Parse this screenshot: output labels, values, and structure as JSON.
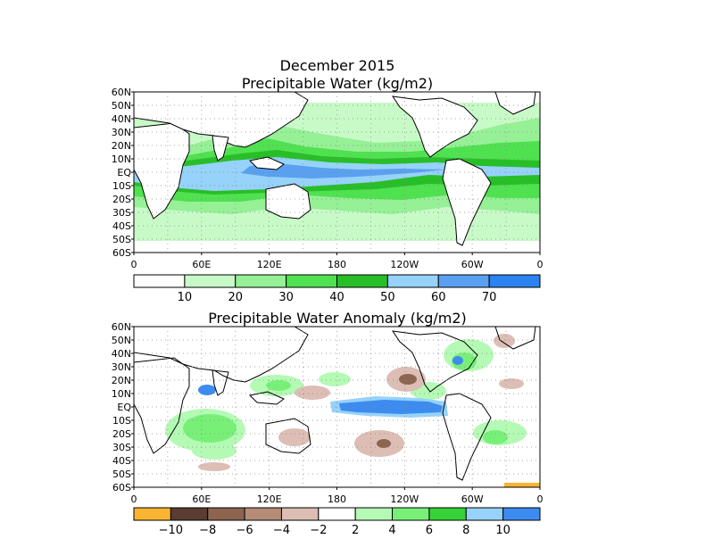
{
  "figure": {
    "title": "December 2015",
    "x_ticks": [
      "0",
      "60E",
      "120E",
      "180",
      "120W",
      "60W",
      "0"
    ],
    "y_ticks": [
      "60N",
      "50N",
      "40N",
      "30N",
      "20N",
      "10N",
      "EQ",
      "10S",
      "20S",
      "30S",
      "40S",
      "50S",
      "60S"
    ]
  },
  "panels": [
    {
      "title": "Precipitable Water (kg/m2)",
      "colorbar": {
        "labels": [
          "10",
          "20",
          "30",
          "40",
          "50",
          "60",
          "70"
        ],
        "colors": [
          "#ffffff",
          "#c8fac8",
          "#96f096",
          "#50e150",
          "#28be28",
          "#96d2fa",
          "#5aa0f0",
          "#2c82f0"
        ]
      }
    },
    {
      "title": "Precipitable Water Anomaly (kg/m2)",
      "colorbar": {
        "labels": [
          "−10",
          "−8",
          "−6",
          "−4",
          "−2",
          "2",
          "4",
          "6",
          "8",
          "10"
        ],
        "colors": [
          "#fab432",
          "#5a3c32",
          "#8c6450",
          "#b48c78",
          "#dcbeb4",
          "#ffffff",
          "#b4fab4",
          "#78f078",
          "#37d237",
          "#96d2fa",
          "#3c8cf0"
        ]
      }
    }
  ]
}
